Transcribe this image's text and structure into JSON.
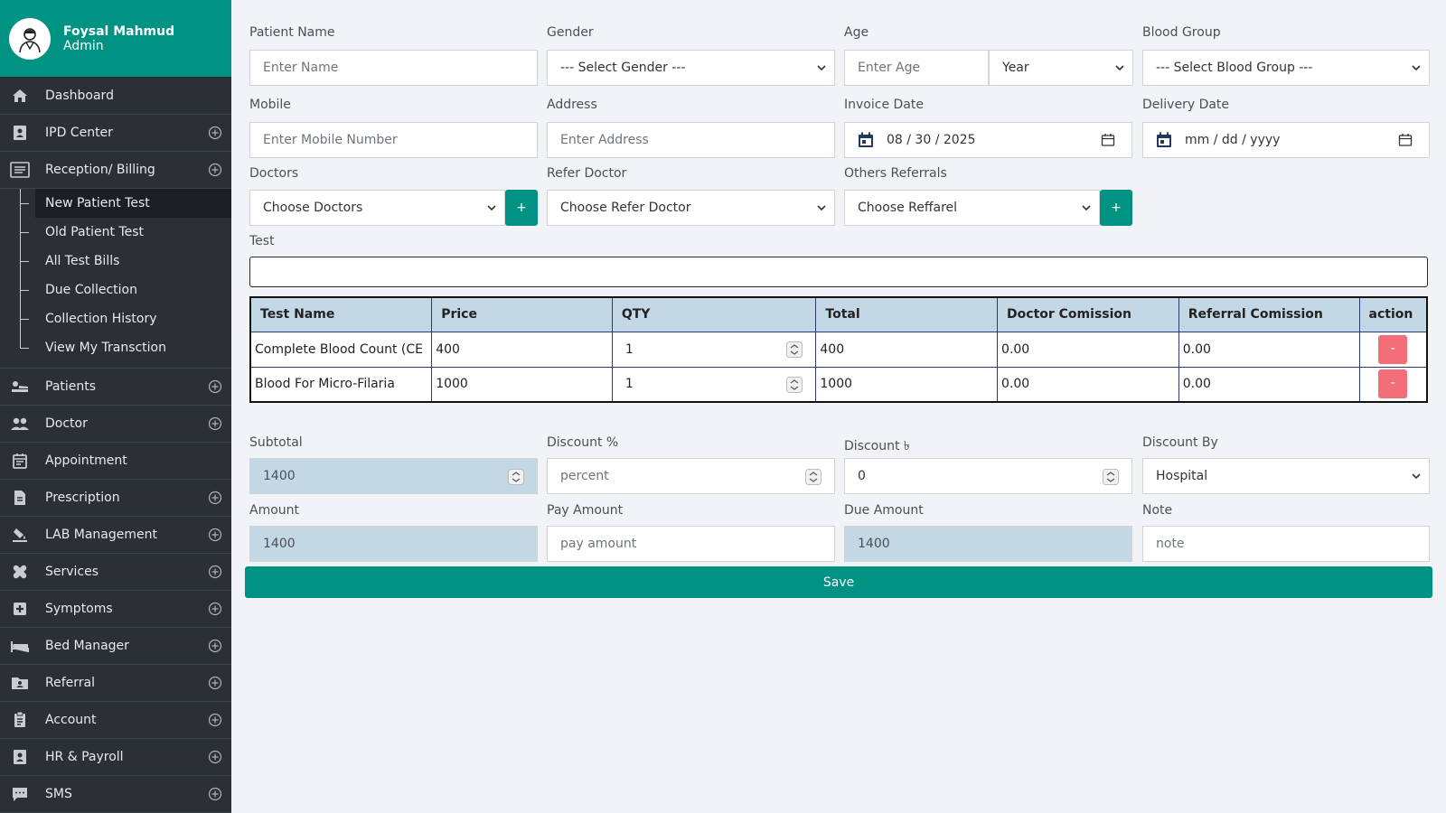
{
  "sidebar": {
    "profile": {
      "name": "Foysal Mahmud",
      "role": "Admin"
    },
    "items": [
      {
        "label": "Dashboard"
      },
      {
        "label": "IPD Center"
      },
      {
        "label": "Reception/ Billing"
      },
      {
        "label": "Patients"
      },
      {
        "label": "Doctor"
      },
      {
        "label": "Appointment"
      },
      {
        "label": "Prescription"
      },
      {
        "label": "LAB Management"
      },
      {
        "label": "Services"
      },
      {
        "label": "Symptoms"
      },
      {
        "label": "Bed Manager"
      },
      {
        "label": "Referral"
      },
      {
        "label": "Account"
      },
      {
        "label": "HR & Payroll"
      },
      {
        "label": "SMS"
      }
    ],
    "submenu": [
      {
        "label": "New Patient Test"
      },
      {
        "label": "Old Patient Test"
      },
      {
        "label": "All Test Bills"
      },
      {
        "label": "Due Collection"
      },
      {
        "label": "Collection History"
      },
      {
        "label": "View My Transction"
      }
    ]
  },
  "form": {
    "patient_name": {
      "label": "Patient Name",
      "placeholder": "Enter  Name"
    },
    "gender": {
      "label": "Gender",
      "value": "--- Select Gender ---"
    },
    "age": {
      "label": "Age",
      "placeholder": "Enter Age",
      "unit": "Year"
    },
    "blood_group": {
      "label": "Blood Group",
      "value": "--- Select Blood Group ---"
    },
    "mobile": {
      "label": "Mobile",
      "placeholder": "Enter  Mobile Number"
    },
    "address": {
      "label": "Address",
      "placeholder": "Enter Address"
    },
    "invoice_date": {
      "label": "Invoice Date",
      "value": "08 / 30 / 2025"
    },
    "delivery_date": {
      "label": "Delivery Date",
      "value": "mm / dd / yyyy"
    },
    "doctors": {
      "label": "Doctors",
      "value": "Choose Doctors",
      "add": "+"
    },
    "refer_doctor": {
      "label": "Refer Doctor",
      "value": "Choose Refer Doctor"
    },
    "others_referrals": {
      "label": "Others Referrals",
      "value": "Choose Reffarel",
      "add": "+"
    },
    "test": {
      "label": "Test"
    }
  },
  "table": {
    "headers": [
      "Test Name",
      "Price",
      "QTY",
      "Total",
      "Doctor Comission",
      "Referral Comission",
      "action"
    ],
    "rows": [
      {
        "name": "Complete Blood Count (CE",
        "price": "400",
        "qty": "1",
        "total": "400",
        "doctor": "0.00",
        "referral": "0.00",
        "action": "-"
      },
      {
        "name": "Blood For Micro-Filaria",
        "price": "1000",
        "qty": "1",
        "total": "1000",
        "doctor": "0.00",
        "referral": "0.00",
        "action": "-"
      }
    ]
  },
  "summary": {
    "subtotal": {
      "label": "Subtotal",
      "value": "1400"
    },
    "discount_pct": {
      "label": "Discount %",
      "placeholder": "percent"
    },
    "discount_amt": {
      "label": "Discount ৳",
      "value": "0"
    },
    "discount_by": {
      "label": "Discount By",
      "value": "Hospital"
    },
    "amount": {
      "label": "Amount",
      "value": "1400"
    },
    "pay_amount": {
      "label": "Pay Amount",
      "placeholder": "pay amount"
    },
    "due_amount": {
      "label": "Due Amount",
      "value": "1400"
    },
    "note": {
      "label": "Note",
      "placeholder": "note"
    },
    "save": "Save"
  },
  "colors": {
    "accent": "#009383",
    "sidebar": "#2a3036",
    "danger": "#f36e78",
    "filled": "#c3d7e5"
  },
  "icons": [
    "home-icon",
    "id-card-icon",
    "list-icon",
    "bed-patient-icon",
    "people-icon",
    "calendar-icon",
    "document-icon",
    "flask-icon",
    "bandage-icon",
    "medical-plus-icon",
    "bed-icon",
    "folder-user-icon",
    "clipboard-icon",
    "badge-icon",
    "chat-icon",
    "plus-circle-icon"
  ]
}
